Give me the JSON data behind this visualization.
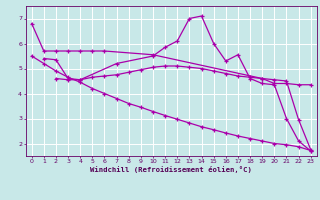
{
  "xlabel": "Windchill (Refroidissement éolien,°C)",
  "background_color": "#c8e8e8",
  "grid_color": "#ffffff",
  "line_color": "#aa00aa",
  "xlim": [
    -0.5,
    23.5
  ],
  "ylim": [
    1.5,
    7.5
  ],
  "yticks": [
    2,
    3,
    4,
    5,
    6,
    7
  ],
  "xticks": [
    0,
    1,
    2,
    3,
    4,
    5,
    6,
    7,
    8,
    9,
    10,
    11,
    12,
    13,
    14,
    15,
    16,
    17,
    18,
    19,
    20,
    21,
    22,
    23
  ],
  "lines": [
    {
      "x": [
        0,
        1,
        2,
        3,
        4,
        5,
        6,
        10,
        19,
        20,
        21,
        22,
        23
      ],
      "y": [
        6.8,
        5.7,
        5.7,
        5.7,
        5.7,
        5.7,
        5.7,
        5.55,
        4.6,
        4.4,
        4.4,
        4.35,
        4.35
      ]
    },
    {
      "x": [
        1,
        2,
        3,
        4,
        7,
        10,
        11,
        12,
        13,
        14,
        15,
        16,
        17,
        18,
        19,
        20,
        21,
        22,
        23
      ],
      "y": [
        5.4,
        5.35,
        4.6,
        4.55,
        5.2,
        5.5,
        5.85,
        6.1,
        7.0,
        7.1,
        6.0,
        5.3,
        5.55,
        4.6,
        4.4,
        4.35,
        3.0,
        2.1,
        1.7
      ]
    },
    {
      "x": [
        2,
        3,
        4,
        5,
        6,
        7,
        8,
        9,
        10,
        11,
        12,
        13,
        14,
        15,
        16,
        17,
        18,
        19,
        20,
        21,
        22,
        23
      ],
      "y": [
        4.6,
        4.55,
        4.55,
        4.65,
        4.7,
        4.75,
        4.85,
        4.95,
        5.05,
        5.1,
        5.1,
        5.05,
        5.0,
        4.9,
        4.8,
        4.7,
        4.65,
        4.6,
        4.55,
        4.5,
        2.95,
        1.75
      ]
    },
    {
      "x": [
        0,
        1,
        2,
        3,
        4,
        5,
        6,
        7,
        8,
        9,
        10,
        11,
        12,
        13,
        14,
        15,
        16,
        17,
        18,
        19,
        20,
        21,
        22,
        23
      ],
      "y": [
        5.5,
        5.2,
        4.9,
        4.65,
        4.45,
        4.2,
        4.0,
        3.8,
        3.6,
        3.45,
        3.28,
        3.12,
        2.97,
        2.82,
        2.67,
        2.55,
        2.42,
        2.3,
        2.2,
        2.1,
        2.0,
        1.95,
        1.87,
        1.72
      ]
    }
  ]
}
